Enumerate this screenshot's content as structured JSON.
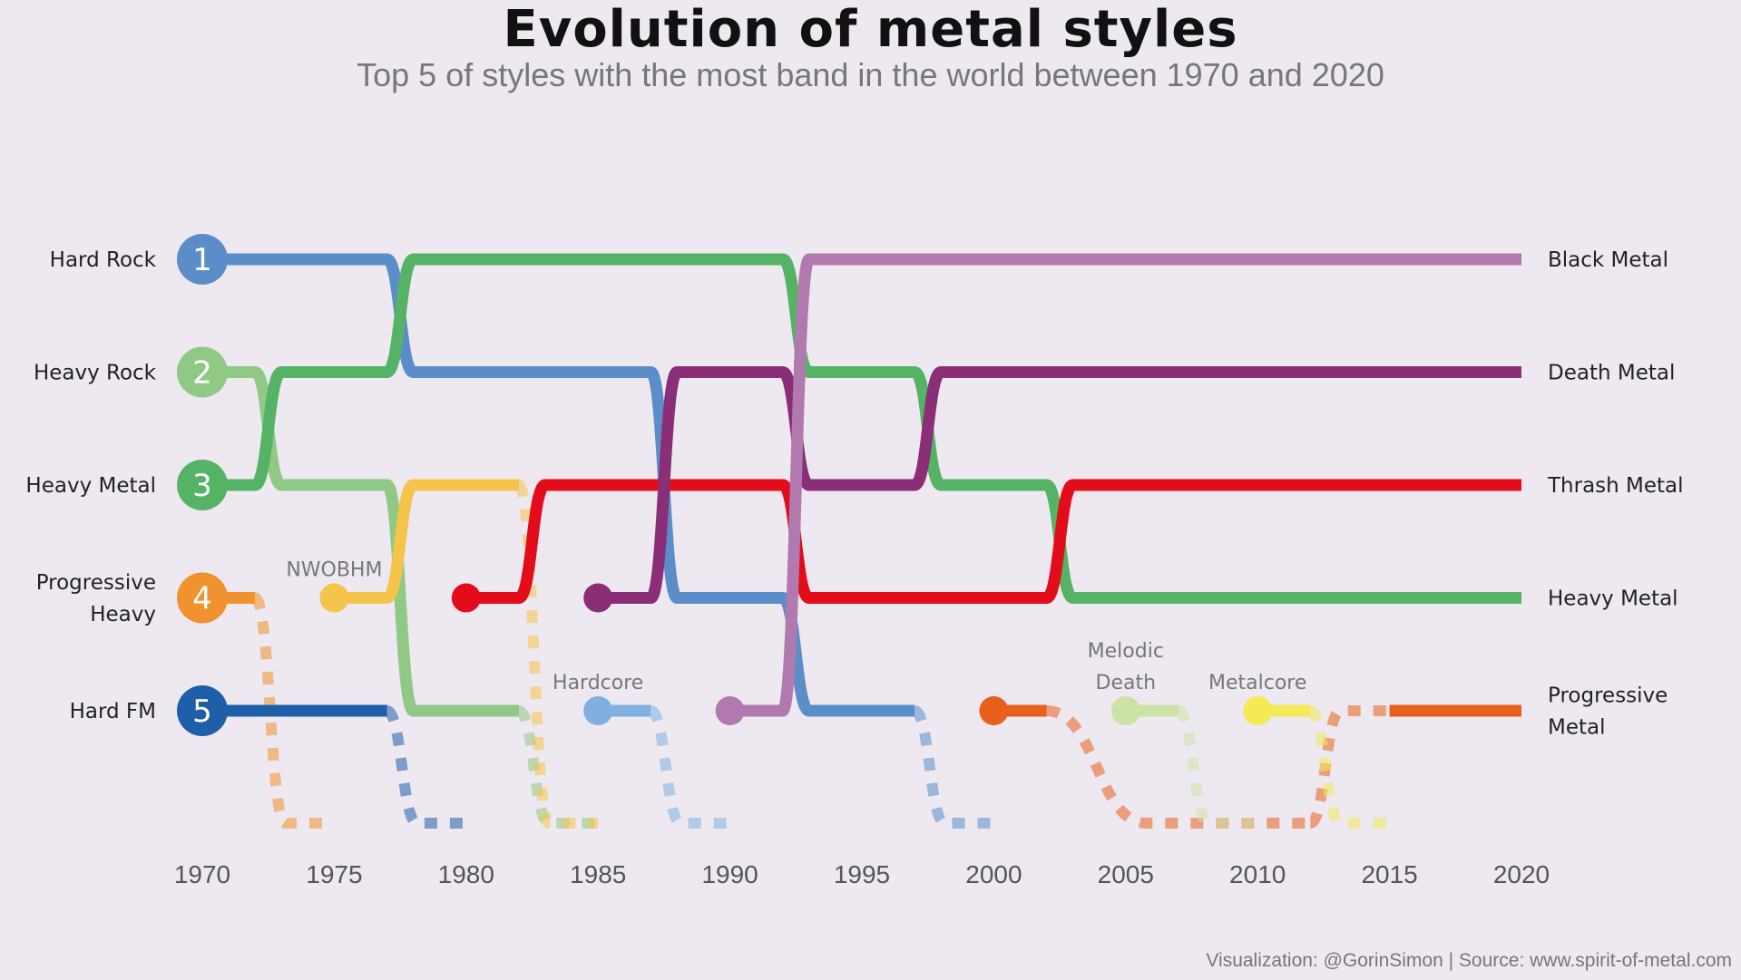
{
  "title": "Evolution of metal styles",
  "subtitle": "Top 5 of styles with the most band in the world between 1970 and 2020",
  "caption": "Visualization: @GorinSimon | Source: www.spirit-of-metal.com",
  "chart_data": {
    "type": "bump",
    "title": "Evolution of metal styles",
    "subtitle": "Top 5 of styles with the most band in the world between 1970 and 2020",
    "xlim": [
      1970,
      2020
    ],
    "x_ticks": [
      "1970",
      "1975",
      "1980",
      "1985",
      "1990",
      "1995",
      "2000",
      "2005",
      "2010",
      "2015",
      "2020"
    ],
    "ranks": [
      1,
      2,
      3,
      4,
      5
    ],
    "left_labels": [
      {
        "rank": 1,
        "lines": [
          "Hard Rock"
        ]
      },
      {
        "rank": 2,
        "lines": [
          "Heavy Rock"
        ]
      },
      {
        "rank": 3,
        "lines": [
          "Heavy Metal"
        ]
      },
      {
        "rank": 4,
        "lines": [
          "Progressive",
          "Heavy"
        ]
      },
      {
        "rank": 5,
        "lines": [
          "Hard FM"
        ]
      }
    ],
    "right_labels": [
      {
        "rank": 1,
        "lines": [
          "Black Metal"
        ]
      },
      {
        "rank": 2,
        "lines": [
          "Death Metal"
        ]
      },
      {
        "rank": 3,
        "lines": [
          "Thrash Metal"
        ]
      },
      {
        "rank": 4,
        "lines": [
          "Heavy Metal"
        ]
      },
      {
        "rank": 5,
        "lines": [
          "Progressive",
          "Metal"
        ]
      }
    ],
    "annotations": [
      {
        "lines": [
          "NWOBHM"
        ],
        "x": 1975,
        "rank": 4
      },
      {
        "lines": [
          "Hardcore"
        ],
        "x": 1985,
        "rank": 5
      },
      {
        "lines": [
          "Melodic",
          "Death"
        ],
        "x": 2005,
        "rank": 5
      },
      {
        "lines": [
          "Metalcore"
        ],
        "x": 2010,
        "rank": 5
      }
    ],
    "series": [
      {
        "style": "Hard Rock",
        "color": "#5b8ec9",
        "segments": [
          {
            "points": [
              [
                1970,
                1
              ],
              [
                1977,
                1
              ],
              [
                1978,
                2
              ],
              [
                1987,
                2
              ],
              [
                1988,
                4
              ],
              [
                1992,
                4
              ],
              [
                1993,
                5
              ],
              [
                1997,
                5
              ]
            ]
          }
        ],
        "drop": {
          "from": 1997,
          "to": 2000
        }
      },
      {
        "style": "Heavy Rock",
        "color": "#90c985",
        "segments": [
          {
            "points": [
              [
                1970,
                2
              ],
              [
                1972,
                2
              ],
              [
                1973,
                3
              ],
              [
                1977,
                3
              ],
              [
                1978,
                5
              ],
              [
                1982,
                5
              ]
            ]
          }
        ],
        "drop": {
          "from": 1982,
          "to": 1985
        }
      },
      {
        "style": "Heavy Metal",
        "color": "#55b365",
        "segments": [
          {
            "points": [
              [
                1970,
                3
              ],
              [
                1972,
                3
              ],
              [
                1973,
                2
              ],
              [
                1977,
                2
              ],
              [
                1978,
                1
              ],
              [
                1992,
                1
              ],
              [
                1993,
                2
              ],
              [
                1997,
                2
              ],
              [
                1998,
                3
              ],
              [
                2002,
                3
              ],
              [
                2003,
                4
              ],
              [
                2020,
                4
              ]
            ]
          }
        ]
      },
      {
        "style": "Progressive Heavy",
        "color": "#f0922e",
        "segments": [
          {
            "points": [
              [
                1970,
                4
              ],
              [
                1972,
                4
              ]
            ]
          }
        ],
        "drop": {
          "from": 1972,
          "to": 1975
        }
      },
      {
        "style": "Hard FM",
        "color": "#1f5ea8",
        "segments": [
          {
            "points": [
              [
                1970,
                5
              ],
              [
                1977,
                5
              ]
            ]
          }
        ],
        "drop": {
          "from": 1977,
          "to": 1980
        }
      },
      {
        "style": "NWOBHM",
        "color": "#f5c44a",
        "start": 1975,
        "segments": [
          {
            "points": [
              [
                1975,
                4
              ],
              [
                1977,
                4
              ],
              [
                1978,
                3
              ],
              [
                1982,
                3
              ]
            ]
          }
        ],
        "drop": {
          "from": 1982,
          "to": 1985
        }
      },
      {
        "style": "Thrash Metal",
        "color": "#e20c1a",
        "start": 1980,
        "segments": [
          {
            "points": [
              [
                1980,
                4
              ],
              [
                1982,
                4
              ],
              [
                1983,
                3
              ],
              [
                1992,
                3
              ],
              [
                1993,
                4
              ],
              [
                2002,
                4
              ],
              [
                2003,
                3
              ],
              [
                2020,
                3
              ]
            ]
          }
        ]
      },
      {
        "style": "Death Metal",
        "color": "#8a2e78",
        "start": 1985,
        "segments": [
          {
            "points": [
              [
                1985,
                4
              ],
              [
                1987,
                4
              ],
              [
                1988,
                2
              ],
              [
                1992,
                2
              ],
              [
                1993,
                3
              ],
              [
                1997,
                3
              ],
              [
                1998,
                2
              ],
              [
                2020,
                2
              ]
            ]
          }
        ]
      },
      {
        "style": "Hardcore",
        "color": "#7fb0e0",
        "start": 1985,
        "segments": [
          {
            "points": [
              [
                1985,
                5
              ],
              [
                1987,
                5
              ]
            ]
          }
        ],
        "drop": {
          "from": 1987,
          "to": 1990
        }
      },
      {
        "style": "Black Metal",
        "color": "#b179ad",
        "start": 1990,
        "segments": [
          {
            "points": [
              [
                1990,
                5
              ],
              [
                1992,
                5
              ],
              [
                1993,
                1
              ],
              [
                2020,
                1
              ]
            ]
          }
        ]
      },
      {
        "style": "Progressive Metal",
        "color": "#e8601c",
        "start": 2000,
        "segments": [
          {
            "points": [
              [
                2000,
                5
              ],
              [
                2002,
                5
              ]
            ]
          },
          {
            "points": [
              [
                2015,
                5
              ],
              [
                2020,
                5
              ]
            ]
          }
        ],
        "drop": {
          "from": 2002,
          "to": 2012
        },
        "rise": {
          "from": 2012,
          "to": 2015
        }
      },
      {
        "style": "Melodic Death",
        "color": "#cde2a5",
        "start": 2005,
        "segments": [
          {
            "points": [
              [
                2005,
                5
              ],
              [
                2007,
                5
              ]
            ]
          }
        ],
        "drop": {
          "from": 2007,
          "to": 2010
        }
      },
      {
        "style": "Metalcore",
        "color": "#f3ea55",
        "start": 2010,
        "segments": [
          {
            "points": [
              [
                2010,
                5
              ],
              [
                2012,
                5
              ]
            ]
          }
        ],
        "drop": {
          "from": 2012,
          "to": 2015
        }
      }
    ]
  }
}
